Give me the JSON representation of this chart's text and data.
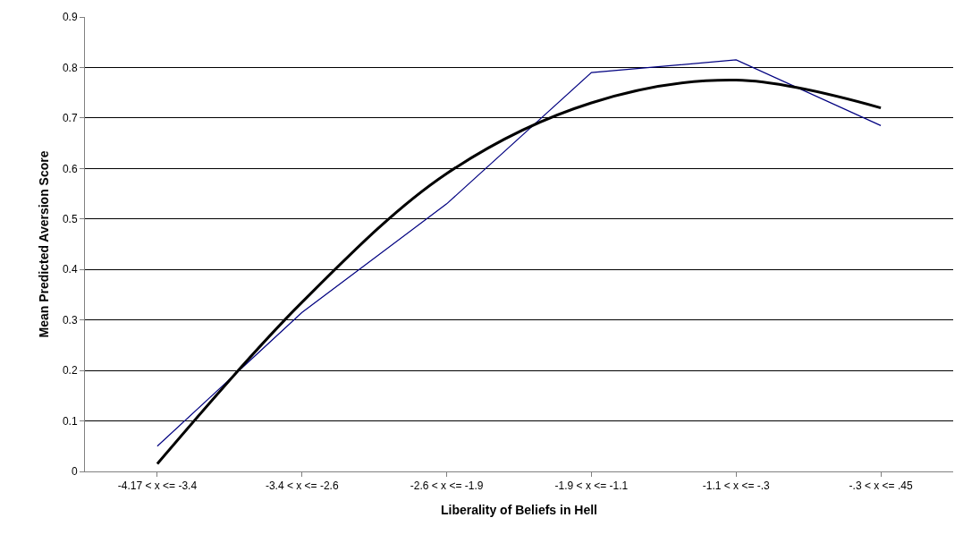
{
  "chart_data": {
    "type": "line",
    "xlabel": "Liberality of Beliefs in Hell",
    "ylabel": "Mean Predicted Aversion Score",
    "categories": [
      "-4.17 < x <= -3.4",
      "-3.4 < x <= -2.6",
      "-2.6 < x <= -1.9",
      "-1.9 < x <= -1.1",
      "-1.1 < x <= -.3",
      "-.3 < x <= .45"
    ],
    "series": [
      {
        "color": "#000080",
        "values": [
          0.05,
          0.315,
          0.53,
          0.79,
          0.815,
          0.685
        ]
      },
      {
        "type": "line",
        "color": "#000000",
        "values": [
          0.015,
          0.335,
          0.59,
          0.73,
          0.775,
          0.72
        ]
      }
    ],
    "ylim": [
      0,
      0.9
    ],
    "yticks": [
      0,
      0.1,
      0.2,
      0.3,
      0.4,
      0.5,
      0.6,
      0.7,
      0.8,
      0.9
    ],
    "grid": "y",
    "marker": "none",
    "line_style": "solid"
  }
}
